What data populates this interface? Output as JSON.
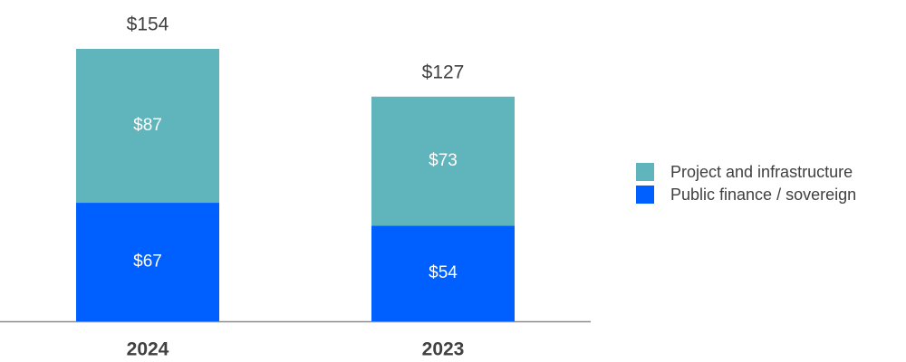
{
  "chart_data": {
    "type": "stacked-bar",
    "categories": [
      "2024",
      "2023"
    ],
    "series": [
      {
        "name": "Public finance / sovereign",
        "color": "#0060ff",
        "values": [
          67,
          54
        ],
        "value_labels": [
          "$67",
          "$54"
        ]
      },
      {
        "name": "Project and infrastructure",
        "color": "#5fb5bb",
        "values": [
          87,
          73
        ],
        "value_labels": [
          "$87",
          "$73"
        ]
      }
    ],
    "totals": {
      "values": [
        154,
        127
      ],
      "value_labels": [
        "$154",
        "$127"
      ]
    },
    "legend": "right"
  }
}
